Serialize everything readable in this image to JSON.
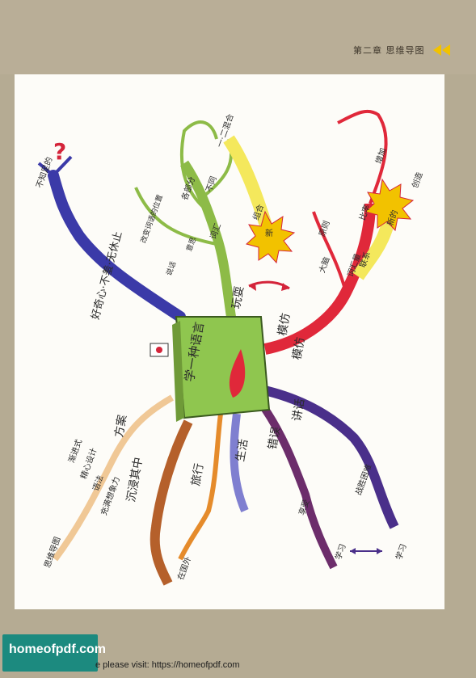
{
  "header": {
    "chapter_title": "第二章 思维导图"
  },
  "mindmap": {
    "center": "学一种语言",
    "branches": {
      "play": {
        "label": "玩耍",
        "sub": [
          "词汇",
          "组合",
          "新",
          "不同",
          "各部分",
          "一·二混合",
          "改变词语的位置",
          "意思",
          "说话"
        ]
      },
      "imitate": {
        "label": "模仿",
        "label2": "模仿",
        "sub": [
          "联系",
          "新的",
          "创造",
          "比率",
          "增加",
          "词汇量",
          "原则",
          "大脑"
        ]
      },
      "talk": {
        "label": "讲话",
        "sub": [
          "战胜困难",
          "学习"
        ]
      },
      "mistake": {
        "label": "错误",
        "sub": [
          "享受",
          "学习"
        ]
      },
      "life": {
        "label": "生活"
      },
      "travel": {
        "label": "旅行",
        "sub": [
          "在国外"
        ]
      },
      "immerse": {
        "label": "沉浸其中"
      },
      "plan": {
        "label": "方案",
        "sub": [
          "渐进式",
          "精心设计",
          "语法",
          "充满想象力",
          "思维导图"
        ]
      },
      "curious": {
        "label": "好奇心·不羞·无休止",
        "sub": [
          "不知足的"
        ]
      }
    }
  },
  "footer": {
    "logo": "homeofpdf.com",
    "text": "e please visit: https://homeofpdf.com"
  },
  "colors": {
    "accent": "#f2c200",
    "sheet": "#fdfcf8",
    "frame": "#b5ab93",
    "logo_bg": "#1c8a7f"
  }
}
